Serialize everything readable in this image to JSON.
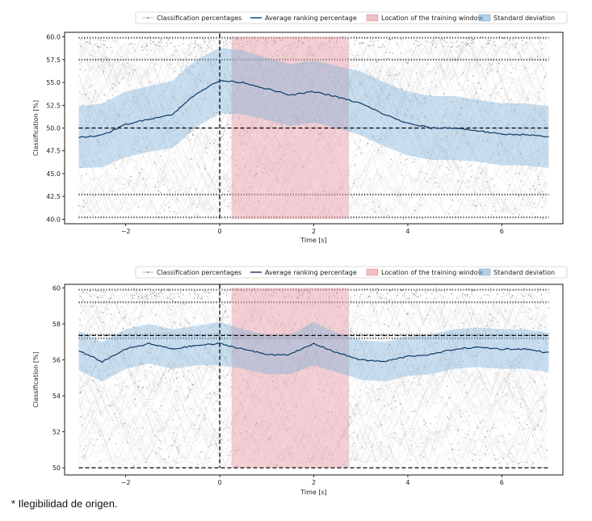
{
  "footnote": "* Ilegibilidad de origen.",
  "chart_data": [
    {
      "type": "line",
      "title": "",
      "xlabel": "Time [s]",
      "ylabel": "Classification [%]",
      "xlim": [
        -3.3,
        7.3
      ],
      "ylim": [
        39.5,
        60.5
      ],
      "xticks": [
        -2,
        0,
        2,
        4,
        6
      ],
      "xtick_labels": [
        "−2",
        "0",
        "2",
        "4",
        "6"
      ],
      "yticks": [
        40.0,
        42.5,
        45.0,
        47.5,
        50.0,
        52.5,
        55.0,
        57.5,
        60.0
      ],
      "ytick_labels": [
        "40.0",
        "42.5",
        "45.0",
        "47.5",
        "50.0",
        "52.5",
        "55.0",
        "57.5",
        "60.0"
      ],
      "grid": false,
      "legend_position": "top",
      "legend": [
        {
          "label": "Classification percentages",
          "kind": "dots"
        },
        {
          "label": "Average ranking percentage",
          "kind": "line"
        },
        {
          "label": "Location of the training window",
          "kind": "patch-red"
        },
        {
          "label": "Standard deviation",
          "kind": "patch-blue"
        }
      ],
      "training_window": [
        0.25,
        2.75
      ],
      "event_marker_x": 0,
      "chance_line_y": 50,
      "series": [
        {
          "name": "Average ranking percentage",
          "x": [
            -3,
            -2.5,
            -2,
            -1.5,
            -1,
            -0.5,
            0,
            0.5,
            1,
            1.5,
            2,
            2.5,
            3,
            3.5,
            4,
            4.5,
            5,
            5.5,
            6,
            6.5,
            7
          ],
          "values": [
            49,
            49.2,
            50.4,
            51.0,
            51.5,
            53.8,
            55.2,
            55.0,
            54.3,
            53.6,
            54.0,
            53.4,
            52.7,
            51.5,
            50.5,
            50.0,
            50.0,
            49.7,
            49.3,
            49.3,
            49.0
          ],
          "std": [
            3.4,
            3.5,
            3.6,
            3.6,
            3.7,
            3.7,
            3.6,
            3.5,
            3.4,
            3.4,
            3.4,
            3.4,
            3.5,
            3.5,
            3.5,
            3.5,
            3.5,
            3.4,
            3.4,
            3.4,
            3.4
          ]
        }
      ]
    },
    {
      "type": "line",
      "title": "",
      "xlabel": "Time [s]",
      "ylabel": "Classification [%]",
      "xlim": [
        -3.3,
        7.3
      ],
      "ylim": [
        49.6,
        60.2
      ],
      "xticks": [
        -2,
        0,
        2,
        4,
        6
      ],
      "xtick_labels": [
        "−2",
        "0",
        "2",
        "4",
        "6"
      ],
      "yticks": [
        50,
        52,
        54,
        56,
        58,
        60
      ],
      "ytick_labels": [
        "50",
        "52",
        "54",
        "56",
        "58",
        "60"
      ],
      "grid": false,
      "legend_position": "top",
      "legend": [
        {
          "label": "Classification percentages",
          "kind": "dots"
        },
        {
          "label": "Average ranking percentage",
          "kind": "line"
        },
        {
          "label": "Location of the training window",
          "kind": "patch-red"
        },
        {
          "label": "Standard deviation",
          "kind": "patch-blue"
        }
      ],
      "training_window": [
        0.25,
        2.75
      ],
      "event_marker_x": 0,
      "reference_lines_y": [
        57.35,
        50.0
      ],
      "series": [
        {
          "name": "Average ranking percentage",
          "x": [
            -3,
            -2.5,
            -2,
            -1.5,
            -1,
            -0.5,
            0,
            0.5,
            1,
            1.5,
            2,
            2.5,
            3,
            3.5,
            4,
            4.5,
            5,
            5.5,
            6,
            6.5,
            7
          ],
          "values": [
            56.5,
            55.9,
            56.6,
            56.9,
            56.6,
            56.8,
            56.9,
            56.6,
            56.3,
            56.3,
            56.9,
            56.4,
            56.0,
            55.9,
            56.2,
            56.3,
            56.6,
            56.7,
            56.6,
            56.6,
            56.4
          ],
          "std": [
            1.1,
            1.1,
            1.1,
            1.1,
            1.1,
            1.1,
            1.2,
            1.1,
            1.1,
            1.1,
            1.2,
            1.1,
            1.1,
            1.1,
            1.1,
            1.1,
            1.1,
            1.1,
            1.1,
            1.1,
            1.1
          ]
        }
      ]
    }
  ]
}
